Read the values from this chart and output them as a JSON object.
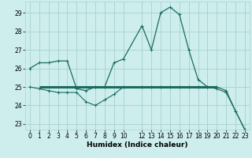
{
  "xlabel": "Humidex (Indice chaleur)",
  "background_color": "#cdeeed",
  "grid_color": "#aad5d3",
  "line_color": "#1a6b5e",
  "xlim": [
    -0.5,
    23.5
  ],
  "ylim": [
    22.7,
    29.6
  ],
  "yticks": [
    23,
    24,
    25,
    26,
    27,
    28,
    29
  ],
  "xticks": [
    0,
    1,
    2,
    3,
    4,
    5,
    6,
    7,
    8,
    9,
    10,
    12,
    13,
    14,
    15,
    16,
    17,
    18,
    19,
    20,
    21,
    22,
    23
  ],
  "xtick_labels": [
    "0",
    "1",
    "2",
    "3",
    "4",
    "5",
    "6",
    "7",
    "8",
    "9",
    "10",
    "12",
    "13",
    "14",
    "15",
    "16",
    "17",
    "18",
    "19",
    "20",
    "21",
    "22",
    "23"
  ],
  "series1_x": [
    0,
    1,
    2,
    3,
    4,
    5,
    6,
    7,
    8,
    9,
    10,
    12,
    13,
    14,
    15,
    16,
    17,
    18,
    19,
    20,
    21,
    22,
    23
  ],
  "series1_y": [
    26.0,
    26.3,
    26.3,
    26.4,
    26.4,
    24.9,
    24.8,
    25.0,
    25.0,
    26.3,
    26.5,
    28.3,
    27.0,
    29.0,
    29.3,
    28.9,
    27.0,
    25.4,
    25.0,
    25.0,
    24.8,
    23.7,
    22.7
  ],
  "series2_x": [
    0,
    1,
    2,
    3,
    4,
    5,
    6,
    7,
    8,
    9,
    10,
    12,
    13,
    14,
    15,
    16,
    17,
    18,
    19,
    20,
    21,
    22,
    23
  ],
  "series2_y": [
    25.0,
    24.9,
    24.8,
    24.7,
    24.7,
    24.7,
    24.2,
    24.0,
    24.3,
    24.6,
    25.0,
    25.0,
    25.0,
    25.0,
    25.0,
    25.0,
    25.0,
    25.0,
    25.0,
    24.9,
    24.7,
    23.7,
    22.7
  ],
  "hline_y": 25.0,
  "hline_x_start": 1.0,
  "hline_x_end": 20.0
}
